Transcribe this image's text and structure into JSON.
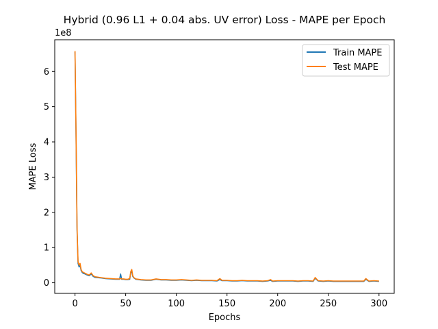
{
  "chart_data": {
    "type": "line",
    "title": "Hybrid (0.96 L1 + 0.04 abs. UV error) Loss - MAPE per Epoch",
    "xlabel": "Epochs",
    "ylabel": "MAPE Loss",
    "y_offset_label": "1e8",
    "xlim": [
      -20,
      315
    ],
    "ylim": [
      -0.3,
      6.9
    ],
    "y_scale_multiplier": 100000000,
    "x_ticks": [
      0,
      50,
      100,
      150,
      200,
      250,
      300
    ],
    "y_ticks": [
      0,
      1,
      2,
      3,
      4,
      5,
      6
    ],
    "grid": false,
    "legend_position": "top-right",
    "series": [
      {
        "name": "Train MAPE",
        "color": "#1f77b4",
        "x": [
          0,
          1,
          2,
          3,
          4,
          5,
          6,
          7,
          8,
          10,
          12,
          14,
          16,
          18,
          20,
          25,
          30,
          35,
          40,
          44,
          45,
          46,
          48,
          50,
          52,
          54,
          55,
          56,
          57,
          58,
          60,
          65,
          70,
          75,
          80,
          85,
          90,
          95,
          100,
          105,
          110,
          115,
          120,
          125,
          130,
          135,
          140,
          143,
          145,
          150,
          155,
          160,
          165,
          170,
          175,
          180,
          185,
          190,
          193,
          195,
          200,
          205,
          210,
          215,
          220,
          225,
          230,
          235,
          237,
          240,
          245,
          250,
          255,
          260,
          265,
          270,
          275,
          280,
          285,
          287,
          290,
          295,
          300
        ],
        "y": [
          6.55,
          4.2,
          1.5,
          0.55,
          0.45,
          0.5,
          0.35,
          0.3,
          0.27,
          0.25,
          0.22,
          0.2,
          0.25,
          0.18,
          0.15,
          0.14,
          0.12,
          0.11,
          0.1,
          0.1,
          0.25,
          0.1,
          0.1,
          0.09,
          0.09,
          0.1,
          0.28,
          0.33,
          0.18,
          0.14,
          0.1,
          0.08,
          0.07,
          0.07,
          0.1,
          0.08,
          0.08,
          0.07,
          0.07,
          0.08,
          0.07,
          0.06,
          0.07,
          0.06,
          0.06,
          0.06,
          0.05,
          0.09,
          0.06,
          0.06,
          0.05,
          0.05,
          0.06,
          0.05,
          0.05,
          0.05,
          0.04,
          0.05,
          0.07,
          0.04,
          0.05,
          0.05,
          0.05,
          0.05,
          0.04,
          0.05,
          0.05,
          0.04,
          0.13,
          0.05,
          0.04,
          0.05,
          0.04,
          0.04,
          0.04,
          0.04,
          0.04,
          0.04,
          0.04,
          0.1,
          0.04,
          0.05,
          0.04
        ]
      },
      {
        "name": "Test MAPE",
        "color": "#ff7f0e",
        "x": [
          0,
          1,
          2,
          3,
          4,
          5,
          6,
          7,
          8,
          10,
          12,
          14,
          16,
          18,
          20,
          25,
          30,
          35,
          40,
          44,
          45,
          46,
          48,
          50,
          52,
          54,
          55,
          56,
          57,
          58,
          60,
          65,
          70,
          75,
          80,
          85,
          90,
          95,
          100,
          105,
          110,
          115,
          120,
          125,
          130,
          135,
          140,
          143,
          145,
          150,
          155,
          160,
          165,
          170,
          175,
          180,
          185,
          190,
          193,
          195,
          200,
          205,
          210,
          215,
          220,
          225,
          230,
          235,
          237,
          240,
          245,
          250,
          255,
          260,
          265,
          270,
          275,
          280,
          285,
          287,
          290,
          295,
          300
        ],
        "y": [
          6.58,
          4.3,
          1.6,
          0.6,
          0.5,
          0.55,
          0.38,
          0.32,
          0.3,
          0.27,
          0.24,
          0.22,
          0.28,
          0.2,
          0.17,
          0.15,
          0.13,
          0.12,
          0.11,
          0.11,
          0.12,
          0.11,
          0.11,
          0.1,
          0.1,
          0.12,
          0.32,
          0.38,
          0.2,
          0.15,
          0.11,
          0.09,
          0.08,
          0.08,
          0.11,
          0.09,
          0.09,
          0.08,
          0.08,
          0.09,
          0.08,
          0.07,
          0.08,
          0.07,
          0.07,
          0.07,
          0.06,
          0.12,
          0.07,
          0.07,
          0.06,
          0.06,
          0.07,
          0.06,
          0.06,
          0.06,
          0.05,
          0.06,
          0.09,
          0.05,
          0.06,
          0.06,
          0.06,
          0.06,
          0.05,
          0.06,
          0.06,
          0.05,
          0.15,
          0.06,
          0.05,
          0.06,
          0.05,
          0.05,
          0.05,
          0.05,
          0.05,
          0.05,
          0.05,
          0.12,
          0.05,
          0.06,
          0.05
        ]
      }
    ]
  }
}
